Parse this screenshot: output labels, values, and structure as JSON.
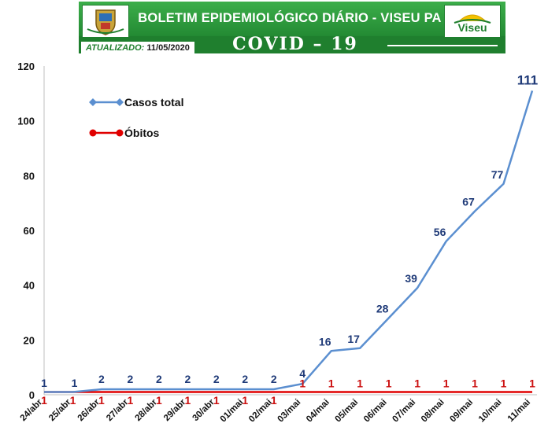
{
  "header": {
    "title": "BOLETIM EPIDEMIOLÓGICO DIÁRIO - VISEU PA",
    "subtitle": "COVID – 19",
    "updated_label": "ATUALIZADO:",
    "updated_date": "11/05/2020",
    "logo_text": "Viseu",
    "colors": {
      "banner": "#2e9a3f",
      "dark": "#1f7f2e"
    }
  },
  "chart_data": {
    "type": "line",
    "categories": [
      "24/abr",
      "25/abr",
      "26/abr",
      "27/abr",
      "28/abr",
      "29/abr",
      "30/abr",
      "01/mai",
      "02/mai",
      "03/mai",
      "04/mai",
      "05/mai",
      "06/mai",
      "07/mai",
      "08/mai",
      "09/mai",
      "10/mai",
      "11/mai"
    ],
    "series": [
      {
        "name": "Casos total",
        "color": "#5b8fd0",
        "label_color": "#1f3a78",
        "marker": "diamond",
        "values": [
          1,
          1,
          2,
          2,
          2,
          2,
          2,
          2,
          2,
          4,
          16,
          17,
          28,
          39,
          56,
          67,
          77,
          111
        ]
      },
      {
        "name": "Óbitos",
        "color": "#e00000",
        "label_color": "#cc1111",
        "marker": "circle",
        "values": [
          1,
          1,
          1,
          1,
          1,
          1,
          1,
          1,
          1,
          1,
          1,
          1,
          1,
          1,
          1,
          1,
          1,
          1
        ]
      }
    ],
    "ylim": [
      0,
      120
    ],
    "yticks": [
      0,
      20,
      40,
      60,
      80,
      100,
      120
    ],
    "grid": false,
    "legend_position": "top-left"
  }
}
